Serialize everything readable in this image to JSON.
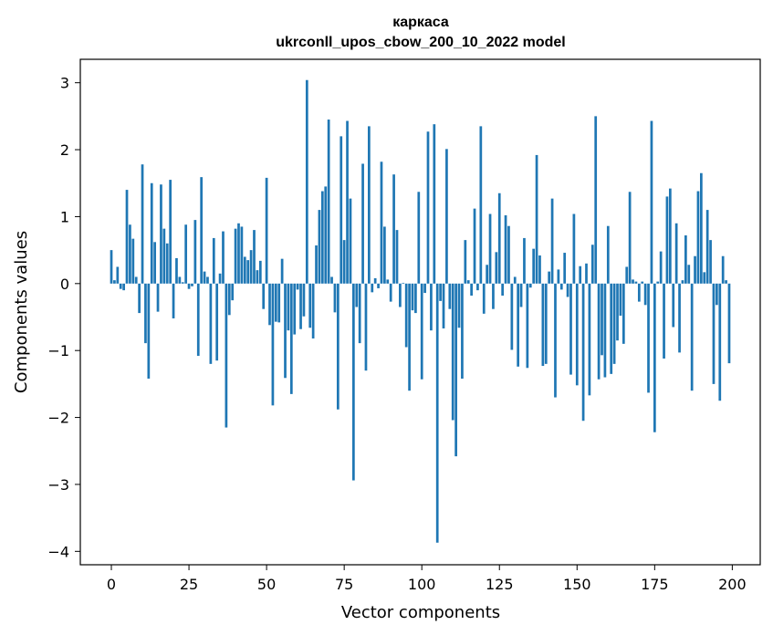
{
  "chart_data": {
    "type": "bar",
    "title": [
      "каркаса",
      "ukrconll_upos_cbow_200_10_2022 model"
    ],
    "xlabel": "Vector components",
    "ylabel": "Components values",
    "xlim": [
      -10,
      209
    ],
    "ylim": [
      -4.2,
      3.35
    ],
    "xticks": [
      0,
      25,
      50,
      75,
      100,
      125,
      150,
      175,
      200
    ],
    "xtick_labels": [
      "0",
      "25",
      "50",
      "75",
      "100",
      "125",
      "150",
      "175",
      "200"
    ],
    "yticks": [
      3,
      2,
      1,
      0,
      -1,
      -2,
      -3,
      -4
    ],
    "ytick_labels": [
      "3",
      "2",
      "1",
      "0",
      "−1",
      "−2",
      "−3",
      "−4"
    ],
    "bar_color": "#1f77b4",
    "grid": false,
    "x": [
      0,
      1,
      2,
      3,
      4,
      5,
      6,
      7,
      8,
      9,
      10,
      11,
      12,
      13,
      14,
      15,
      16,
      17,
      18,
      19,
      20,
      21,
      22,
      23,
      24,
      25,
      26,
      27,
      28,
      29,
      30,
      31,
      32,
      33,
      34,
      35,
      36,
      37,
      38,
      39,
      40,
      41,
      42,
      43,
      44,
      45,
      46,
      47,
      48,
      49,
      50,
      51,
      52,
      53,
      54,
      55,
      56,
      57,
      58,
      59,
      60,
      61,
      62,
      63,
      64,
      65,
      66,
      67,
      68,
      69,
      70,
      71,
      72,
      73,
      74,
      75,
      76,
      77,
      78,
      79,
      80,
      81,
      82,
      83,
      84,
      85,
      86,
      87,
      88,
      89,
      90,
      91,
      92,
      93,
      94,
      95,
      96,
      97,
      98,
      99,
      100,
      101,
      102,
      103,
      104,
      105,
      106,
      107,
      108,
      109,
      110,
      111,
      112,
      113,
      114,
      115,
      116,
      117,
      118,
      119,
      120,
      121,
      122,
      123,
      124,
      125,
      126,
      127,
      128,
      129,
      130,
      131,
      132,
      133,
      134,
      135,
      136,
      137,
      138,
      139,
      140,
      141,
      142,
      143,
      144,
      145,
      146,
      147,
      148,
      149,
      150,
      151,
      152,
      153,
      154,
      155,
      156,
      157,
      158,
      159,
      160,
      161,
      162,
      163,
      164,
      165,
      166,
      167,
      168,
      169,
      170,
      171,
      172,
      173,
      174,
      175,
      176,
      177,
      178,
      179,
      180,
      181,
      182,
      183,
      184,
      185,
      186,
      187,
      188,
      189,
      190,
      191,
      192,
      193,
      194,
      195,
      196,
      197,
      198,
      199
    ],
    "values": [
      0.5,
      0.05,
      0.25,
      -0.08,
      -0.1,
      1.4,
      0.88,
      0.67,
      0.1,
      -0.44,
      1.78,
      -0.89,
      -1.42,
      1.5,
      0.62,
      -0.42,
      1.48,
      0.82,
      0.6,
      1.55,
      -0.52,
      0.38,
      0.1,
      0.02,
      0.88,
      -0.08,
      -0.04,
      0.95,
      -1.08,
      1.59,
      0.18,
      0.1,
      -1.2,
      0.68,
      -1.15,
      0.15,
      0.78,
      -2.15,
      -0.47,
      -0.25,
      0.82,
      0.9,
      0.85,
      0.4,
      0.35,
      0.5,
      0.8,
      0.2,
      0.34,
      -0.38,
      1.58,
      -0.62,
      -1.82,
      -0.57,
      -0.58,
      0.37,
      -1.41,
      -0.7,
      -1.65,
      -0.76,
      -0.09,
      -0.68,
      -0.49,
      3.04,
      -0.66,
      -0.82,
      0.57,
      1.1,
      1.38,
      1.45,
      2.45,
      0.1,
      -0.43,
      -1.88,
      2.2,
      0.65,
      2.43,
      1.27,
      -2.94,
      -0.35,
      -0.89,
      1.79,
      -1.3,
      2.35,
      -0.13,
      0.08,
      -0.07,
      1.82,
      0.85,
      0.06,
      -0.27,
      1.63,
      0.8,
      -0.35,
      0.01,
      -0.95,
      -1.6,
      -0.4,
      -0.44,
      1.37,
      -1.43,
      -0.14,
      2.27,
      -0.7,
      2.38,
      -3.87,
      -0.26,
      -0.67,
      2.01,
      -0.38,
      -2.04,
      -2.58,
      -0.66,
      -1.42,
      0.65,
      0.05,
      -0.18,
      1.12,
      -0.1,
      2.35,
      -0.45,
      0.28,
      1.04,
      -0.38,
      0.47,
      1.35,
      -0.18,
      1.02,
      0.86,
      -0.99,
      0.1,
      -1.24,
      -0.35,
      0.68,
      -1.26,
      -0.06,
      0.52,
      1.92,
      0.42,
      -1.23,
      -1.2,
      0.18,
      1.27,
      -1.7,
      0.21,
      -0.09,
      0.46,
      -0.2,
      -1.36,
      1.04,
      -1.52,
      0.26,
      -2.05,
      0.3,
      -1.67,
      0.58,
      2.5,
      -1.43,
      -1.07,
      -1.4,
      0.86,
      -1.35,
      -1.2,
      -0.85,
      -0.48,
      -0.9,
      0.25,
      1.37,
      0.06,
      0.03,
      -0.27,
      0.03,
      -0.32,
      -1.63,
      2.43,
      -2.22,
      0.03,
      0.48,
      -1.12,
      1.3,
      1.42,
      -0.65,
      0.9,
      -1.03,
      0.05,
      0.72,
      0.28,
      -1.6,
      0.41,
      1.38,
      1.65,
      0.17,
      1.1,
      0.65,
      -1.5,
      -0.32,
      -1.75,
      0.41,
      0.05,
      -1.19
    ]
  }
}
